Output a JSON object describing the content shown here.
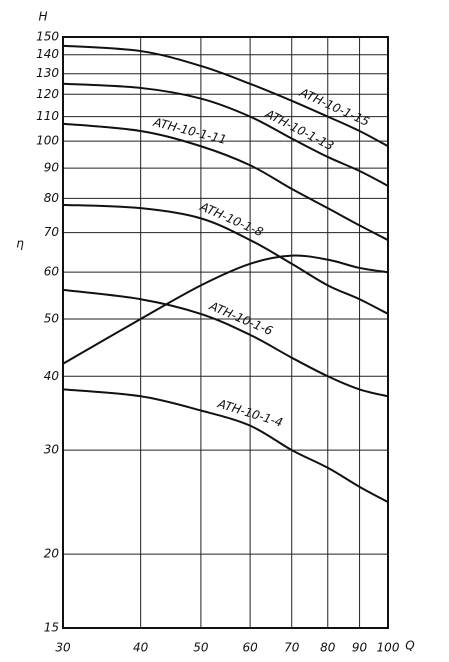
{
  "chart_data": {
    "type": "line",
    "y_label": "H",
    "x_label": "Q",
    "xscale": "log",
    "yscale": "log",
    "grid": true,
    "xlim": [
      30,
      100
    ],
    "xticks": [
      30,
      40,
      50,
      60,
      70,
      80,
      90,
      100
    ],
    "ylim": [
      15,
      150
    ],
    "yticks": [
      15,
      20,
      30,
      40,
      50,
      60,
      70,
      80,
      90,
      100,
      110,
      120,
      130,
      140,
      150
    ],
    "x": [
      30,
      40,
      50,
      60,
      70,
      80,
      90,
      100
    ],
    "series": [
      {
        "name": "ATH-10-1-15",
        "color": "#111111",
        "values": [
          145,
          142,
          134,
          125,
          117,
          110,
          104,
          98
        ]
      },
      {
        "name": "ATH-10-1-13",
        "color": "#111111",
        "values": [
          125,
          123,
          118,
          110,
          101,
          94,
          89,
          84
        ]
      },
      {
        "name": "ATH-10-1-11",
        "color": "#111111",
        "values": [
          107,
          104,
          98,
          91,
          83,
          77,
          72,
          68
        ]
      },
      {
        "name": "ATH-10-1-8",
        "color": "#111111",
        "values": [
          78,
          77,
          74,
          68,
          62,
          57,
          54,
          51
        ]
      },
      {
        "name": "ATH-10-1-6",
        "color": "#111111",
        "values": [
          56,
          54,
          51,
          47,
          43,
          40,
          38,
          37
        ]
      },
      {
        "name": "ATH-10-1-4",
        "color": "#111111",
        "values": [
          38,
          37,
          35,
          33,
          30,
          28,
          26,
          24.5
        ]
      },
      {
        "name": "η",
        "color": "#111111",
        "values": [
          42,
          50,
          57,
          62,
          64,
          63,
          61,
          60
        ]
      }
    ]
  }
}
